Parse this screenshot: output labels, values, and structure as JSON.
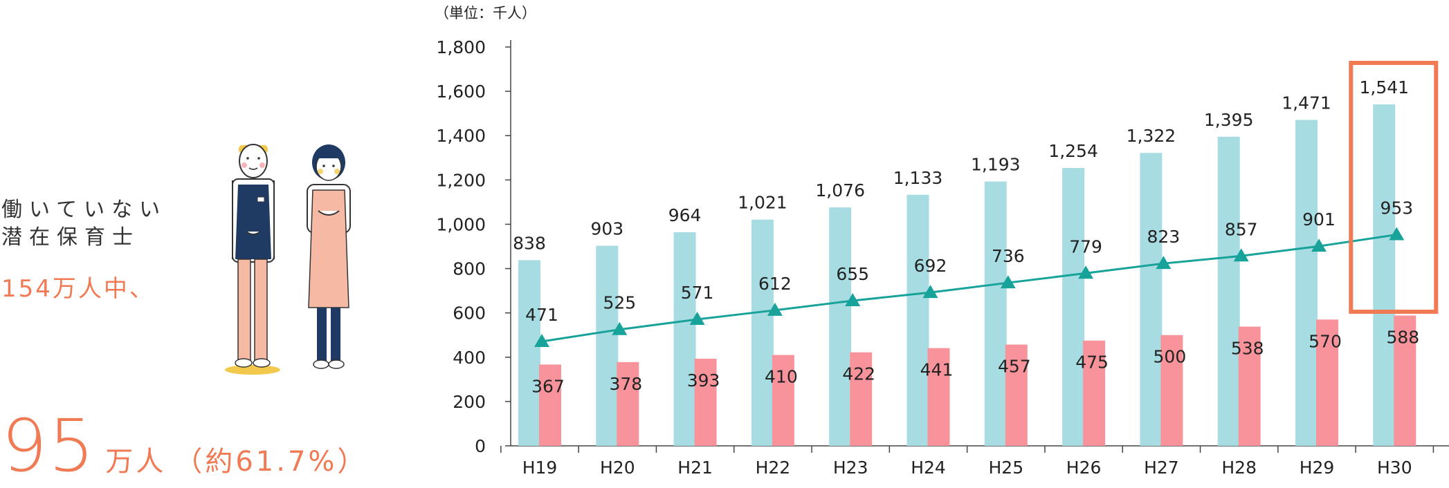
{
  "left": {
    "caption_line1": "働いていない",
    "caption_line2": "潜在保育士",
    "highlight": "154万人中、",
    "big_number": "95",
    "big_unit": "万人",
    "big_note": "（約61.7%）"
  },
  "colors": {
    "accent": "#f07a53",
    "bar_total": "#a7dde2",
    "bar_sub": "#f8939b",
    "line": "#17a29a",
    "highlight_box": "#f07a53",
    "text": "#333333"
  },
  "chart_data": {
    "type": "bar",
    "unit_label": "（単位：千人）",
    "categories": [
      "H19",
      "H20",
      "H21",
      "H22",
      "H23",
      "H24",
      "H25",
      "H26",
      "H27",
      "H28",
      "H29",
      "H30"
    ],
    "series": [
      {
        "type": "bar",
        "values": [
          838,
          903,
          964,
          1021,
          1076,
          1133,
          1193,
          1254,
          1322,
          1395,
          1471,
          1541
        ]
      },
      {
        "type": "bar",
        "values": [
          367,
          378,
          393,
          410,
          422,
          441,
          457,
          475,
          500,
          538,
          570,
          588
        ]
      },
      {
        "type": "line",
        "marker": "triangle",
        "values": [
          471,
          525,
          571,
          612,
          655,
          692,
          736,
          779,
          823,
          857,
          901,
          953
        ]
      }
    ],
    "yticks": [
      0,
      200,
      400,
      600,
      800,
      1000,
      1200,
      1400,
      1600,
      1800
    ],
    "ytick_labels": [
      "0",
      "200",
      "400",
      "600",
      "800",
      "1,000",
      "1,200",
      "1,400",
      "1,600",
      "1,800"
    ],
    "ylim": [
      0,
      1800
    ],
    "highlight_category": "H30",
    "grid": false,
    "legend": "none"
  }
}
